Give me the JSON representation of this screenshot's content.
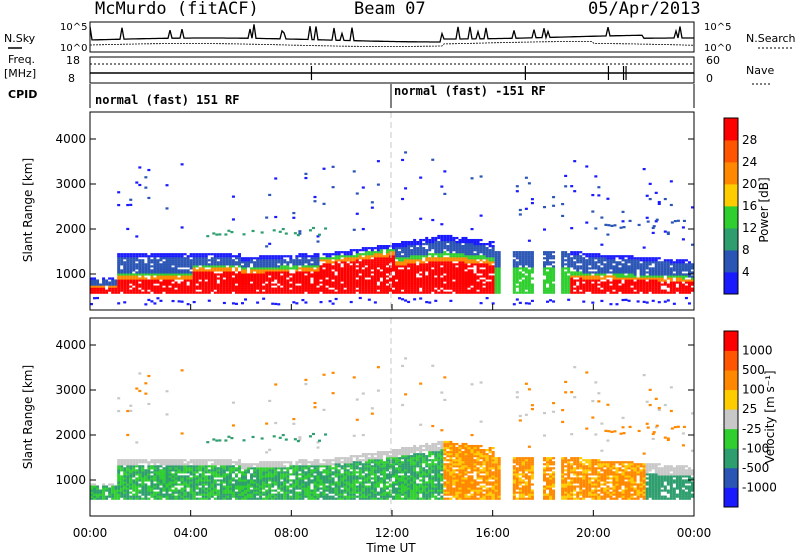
{
  "header": {
    "station": "McMurdo (fitACF)",
    "beam": "Beam 07",
    "date": "05/Apr/2013"
  },
  "top_panel": {
    "nsky_label": "N.Sky",
    "nsearch_label": "N.Search",
    "noise_ticks": [
      "10^5",
      "10^0"
    ],
    "freq_label_1": "Freq.",
    "freq_label_2": "[MHz]",
    "freq_ticks": [
      "18",
      "8"
    ],
    "nave_label": "Nave",
    "nave_ticks": [
      "60",
      "0"
    ],
    "cpid_label": "CPID",
    "cpid_segments": [
      {
        "text": "normal (fast) 151 RF"
      },
      {
        "text": "normal (fast) -151 RF"
      }
    ]
  },
  "colors": {
    "axis": "#000000",
    "dash": "#c8c8c8"
  },
  "chart_data": [
    {
      "type": "heatmap",
      "name": "power",
      "ylabel": "Slant Range [km]",
      "y_ticks": [
        "1000",
        "2000",
        "3000",
        "4000"
      ],
      "x_range_hours": [
        0,
        24
      ],
      "colorbar": {
        "label": "Power [dB]",
        "ticks": [
          "4",
          "8",
          "12",
          "16",
          "20",
          "24",
          "28"
        ],
        "colors": [
          "#1a1aff",
          "#2a55b4",
          "#2e9e6e",
          "#2fcf2f",
          "#ffcc00",
          "#ff8800",
          "#ff5500",
          "#ff0000"
        ]
      }
    },
    {
      "type": "heatmap",
      "name": "velocity",
      "ylabel": "Slant Range [km]",
      "y_ticks": [
        "1000",
        "2000",
        "3000",
        "4000"
      ],
      "x_range_hours": [
        0,
        24
      ],
      "colorbar": {
        "label": "Velocity [m s⁻¹]",
        "ticks": [
          "1000",
          "500",
          "100",
          "25",
          "-25",
          "-100",
          "-500",
          "-1000"
        ],
        "colors": [
          "#1a1aff",
          "#2a55b4",
          "#2e9e6e",
          "#2fcf2f",
          "#c8c8c8",
          "#ffcc00",
          "#ff8800",
          "#ff5500",
          "#ff0000"
        ]
      }
    }
  ],
  "x_axis": {
    "ticks": [
      "00:00",
      "04:00",
      "08:00",
      "12:00",
      "16:00",
      "20:00",
      "00:00"
    ],
    "label": "Time UT"
  }
}
